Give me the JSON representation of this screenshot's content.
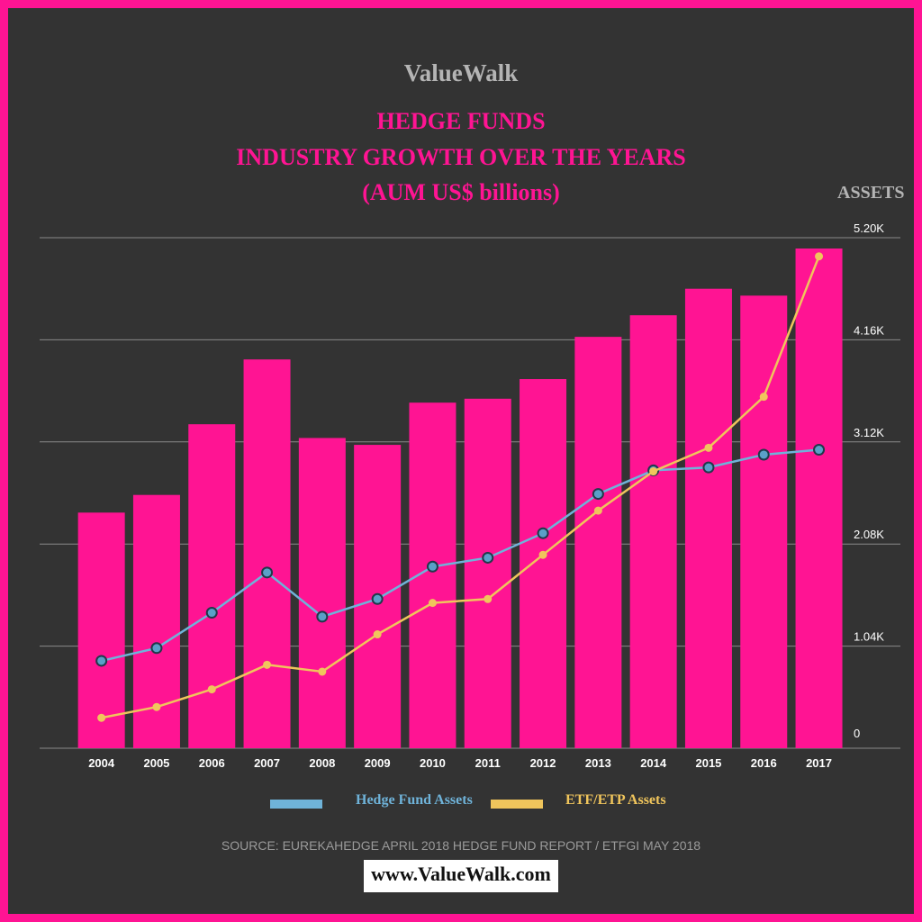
{
  "brand": "ValueWalk",
  "title_lines": [
    "HEDGE FUNDS",
    "INDUSTRY GROWTH OVER THE YEARS",
    "(AUM US$ billions)"
  ],
  "source": "SOURCE: EUREKAHEDGE APRIL 2018 HEDGE FUND REPORT / ETFGI MAY 2018",
  "url": "www.ValueWalk.com",
  "colors": {
    "border": "#ff1493",
    "background": "#333333",
    "bars": "#ff1493",
    "hedge_fund_line": "#6fb3d9",
    "etf_line": "#f0c55c"
  },
  "chart_data": {
    "type": "bar",
    "categories": [
      "2004",
      "2005",
      "2006",
      "2007",
      "2008",
      "2009",
      "2010",
      "2011",
      "2012",
      "2013",
      "2014",
      "2015",
      "2016",
      "2017"
    ],
    "ylabel": "ASSETS",
    "ylim": [
      0,
      5200
    ],
    "yticks": [
      0,
      1040,
      2080,
      3120,
      4160,
      5200
    ],
    "ytick_labels": [
      "0",
      "1.04K",
      "2.08K",
      "3.12K",
      "4.16K",
      "5.20K"
    ],
    "axis_position": "right",
    "grid": true,
    "bars": {
      "values": [
        2400,
        2580,
        3300,
        3960,
        3160,
        3090,
        3520,
        3560,
        3760,
        4190,
        4410,
        4680,
        4610,
        5090
      ]
    },
    "series": [
      {
        "name": "Hedge Fund Assets",
        "type": "line",
        "values": [
          890,
          1020,
          1380,
          1790,
          1340,
          1520,
          1850,
          1940,
          2190,
          2590,
          2830,
          2860,
          2990,
          3040
        ]
      },
      {
        "name": "ETF/ETP Assets",
        "type": "line",
        "values": [
          310,
          420,
          600,
          850,
          780,
          1160,
          1480,
          1520,
          1970,
          2420,
          2820,
          3060,
          3580,
          5010
        ]
      }
    ],
    "legend_position": "bottom"
  }
}
